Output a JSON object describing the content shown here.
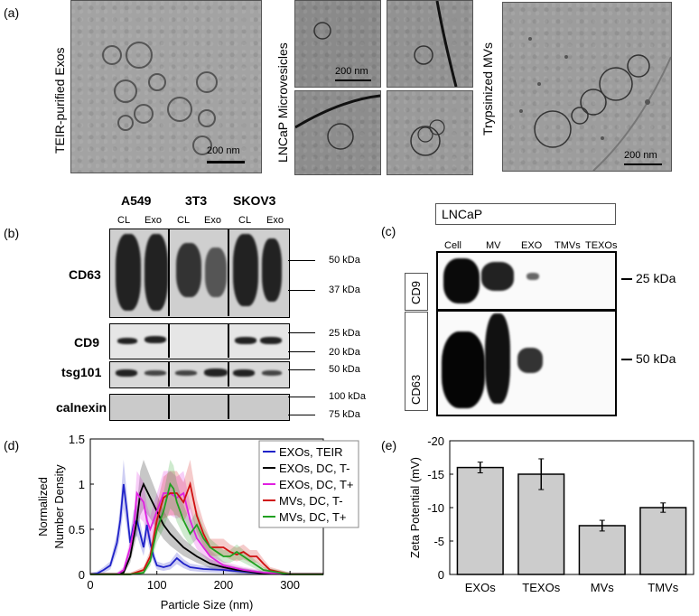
{
  "panel_labels": {
    "a": "(a)",
    "b": "(b)",
    "c": "(c)",
    "d": "(d)",
    "e": "(e)"
  },
  "panel_a": {
    "teir_label": "TEIR-purified Exos",
    "lncap_label": "LNCaP Microvesicles",
    "tryp_label": "Trypsinized MVs",
    "scale_1": "200 nm",
    "scale_2": "200 nm",
    "scale_3": "200 nm"
  },
  "panel_b": {
    "cell_lines": [
      "A549",
      "3T3",
      "SKOV3"
    ],
    "lane_labels": [
      "CL",
      "Exo",
      "CL",
      "Exo",
      "CL",
      "Exo"
    ],
    "rows": [
      "CD63",
      "CD9",
      "tsg101",
      "calnexin"
    ],
    "kda": [
      "50 kDa",
      "37 kDa",
      "25 kDa",
      "20 kDa",
      "50 kDa",
      "100 kDa",
      "75 kDa"
    ]
  },
  "panel_c": {
    "title": "LNCaP",
    "lanes": [
      "Cell",
      "MV",
      "EXO",
      "TMVs",
      "TEXOs"
    ],
    "rows": [
      "CD9",
      "CD63"
    ],
    "kda": [
      "25 kDa",
      "50 kDa"
    ]
  },
  "chart_data": [
    {
      "type": "line",
      "xlabel": "Particle Size (nm)",
      "ylabel": "Normalized Number Density",
      "xlim": [
        0,
        350
      ],
      "ylim": [
        0,
        1.5
      ],
      "xticks": [
        "0",
        "100",
        "200",
        "300"
      ],
      "yticks": [
        "0",
        "0.5",
        "1",
        "1.5"
      ],
      "legend_position": "top-right",
      "series": [
        {
          "name": "EXOs, TEIR",
          "color": "#1f22c8",
          "x": [
            0,
            10,
            20,
            30,
            40,
            45,
            50,
            55,
            60,
            65,
            70,
            75,
            80,
            85,
            90,
            95,
            100,
            110,
            120,
            130,
            140,
            150,
            170,
            200,
            230,
            260,
            300,
            350
          ],
          "y": [
            0,
            0.01,
            0.05,
            0.1,
            0.35,
            0.6,
            1.0,
            0.7,
            0.35,
            0.55,
            0.6,
            0.45,
            0.3,
            0.55,
            0.35,
            0.2,
            0.1,
            0.08,
            0.1,
            0.18,
            0.12,
            0.08,
            0.06,
            0.05,
            0.03,
            0.01,
            0,
            0
          ]
        },
        {
          "name": "EXOs, DC, T-",
          "color": "#000000",
          "x": [
            0,
            40,
            50,
            60,
            70,
            75,
            80,
            90,
            100,
            110,
            120,
            140,
            160,
            180,
            200,
            220,
            240,
            260,
            300,
            350
          ],
          "y": [
            0,
            0,
            0.02,
            0.2,
            0.6,
            0.9,
            1.0,
            0.85,
            0.7,
            0.55,
            0.45,
            0.3,
            0.2,
            0.12,
            0.08,
            0.05,
            0.03,
            0.01,
            0,
            0
          ]
        },
        {
          "name": "EXOs, DC, T+",
          "color": "#e020e0",
          "x": [
            0,
            40,
            50,
            60,
            65,
            70,
            75,
            80,
            85,
            90,
            100,
            110,
            120,
            130,
            140,
            150,
            160,
            180,
            200,
            230,
            260,
            300,
            350
          ],
          "y": [
            0,
            0,
            0.05,
            0.3,
            0.5,
            0.9,
            0.85,
            0.8,
            0.6,
            0.5,
            0.7,
            0.9,
            0.9,
            0.85,
            0.9,
            0.6,
            0.4,
            0.2,
            0.1,
            0.05,
            0.02,
            0,
            0
          ]
        },
        {
          "name": "MVs, DC, T-",
          "color": "#d01010",
          "x": [
            0,
            60,
            80,
            90,
            100,
            110,
            120,
            130,
            140,
            150,
            160,
            170,
            180,
            190,
            200,
            210,
            220,
            230,
            240,
            250,
            260,
            270,
            300,
            350
          ],
          "y": [
            0,
            0,
            0.05,
            0.2,
            0.6,
            0.85,
            0.9,
            0.9,
            0.8,
            1.0,
            0.65,
            0.45,
            0.3,
            0.3,
            0.3,
            0.25,
            0.22,
            0.25,
            0.2,
            0.2,
            0.12,
            0.05,
            0,
            0
          ]
        },
        {
          "name": "MVs, DC, T+",
          "color": "#20a020",
          "x": [
            0,
            60,
            80,
            90,
            100,
            110,
            115,
            120,
            125,
            130,
            140,
            150,
            160,
            170,
            180,
            190,
            200,
            210,
            220,
            230,
            240,
            260,
            300,
            350
          ],
          "y": [
            0,
            0,
            0.02,
            0.15,
            0.5,
            0.7,
            0.85,
            1.0,
            0.95,
            0.8,
            0.6,
            0.45,
            0.55,
            0.4,
            0.3,
            0.25,
            0.2,
            0.2,
            0.25,
            0.2,
            0.15,
            0.05,
            0,
            0
          ]
        }
      ]
    },
    {
      "type": "bar",
      "categories": [
        "EXOs",
        "TEXOs",
        "MVs",
        "TMVs"
      ],
      "values": [
        -16,
        -15,
        -7.3,
        -10
      ],
      "errors": [
        0.8,
        2.3,
        0.8,
        0.7
      ],
      "ylabel": "Zeta Potential (mV)",
      "ylim": [
        0,
        -20
      ],
      "yticks": [
        "-20",
        "-15",
        "-10",
        "-5",
        "0"
      ],
      "bar_color": "#cccccc"
    }
  ]
}
